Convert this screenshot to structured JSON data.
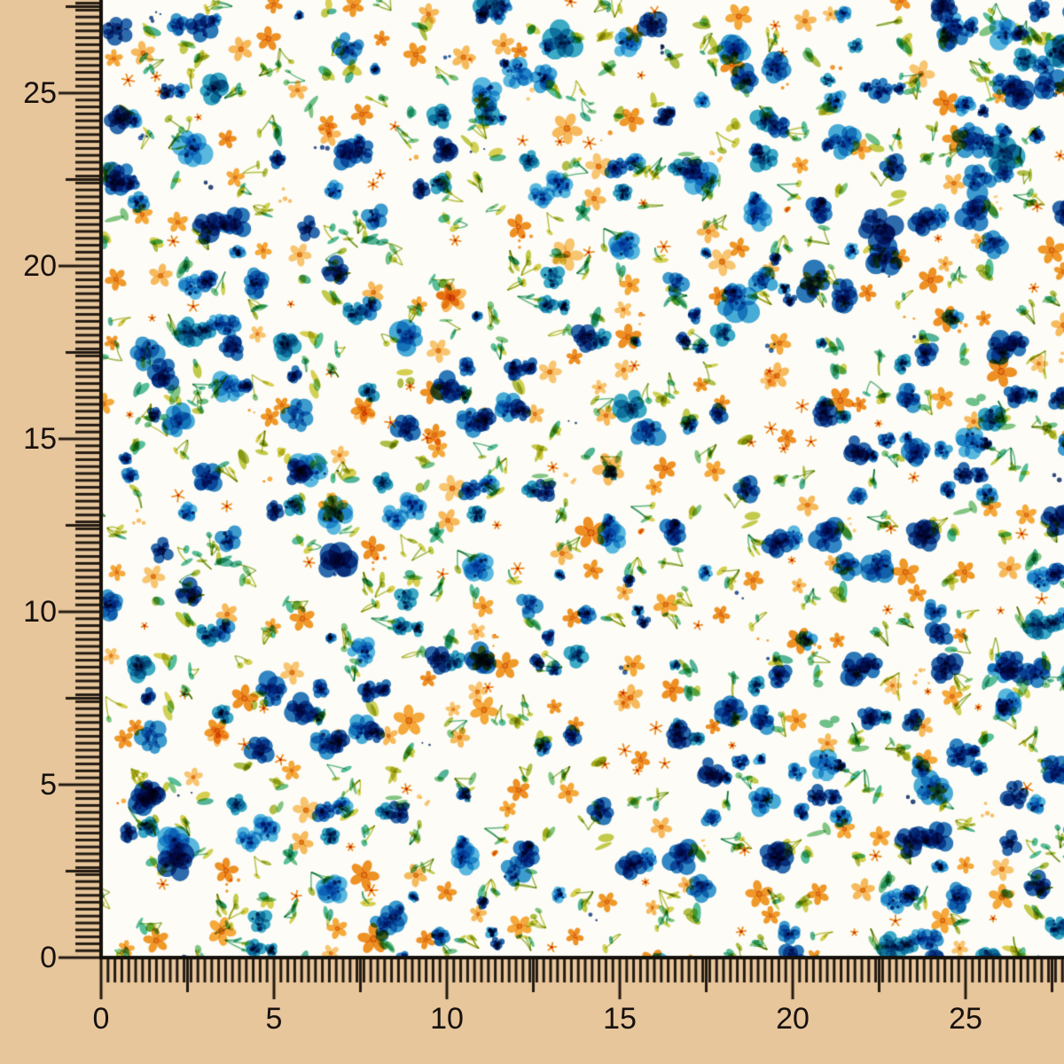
{
  "page": {
    "background_color": "#e8c69c",
    "tick_color": "#221a12",
    "label_color": "#17110d"
  },
  "ruler": {
    "left_labels": [
      "25",
      "20",
      "15",
      "10",
      "5",
      "0"
    ],
    "bottom_labels": [
      "0",
      "5",
      "10",
      "15",
      "20",
      "25"
    ]
  },
  "fabric": {
    "base_color": "#fdfcf6",
    "border_color": "#14100b",
    "palette": {
      "blues": [
        "#38a6dc",
        "#1f7ec6",
        "#1c60ad",
        "#2e95d2",
        "#4db4e4",
        "#1b6fba",
        "#2ba4c8"
      ],
      "navies": [
        "#143e8a",
        "#0f2f6b",
        "#174f9e"
      ],
      "oranges": [
        "#f6a42c",
        "#f09318",
        "#f8b751",
        "#ef8a12",
        "#fac468"
      ],
      "flower_center": "#e0790b",
      "star_orange": "#ec8410",
      "leaves": [
        "#3db690",
        "#58b97a",
        "#36a98c",
        "#6fbe74"
      ],
      "chartreuse": [
        "#bac42f",
        "#cacd3d",
        "#a5b62c",
        "#d2ca36"
      ],
      "stems": [
        "#8fae35",
        "#4fae7a",
        "#b1bb2e"
      ]
    }
  }
}
